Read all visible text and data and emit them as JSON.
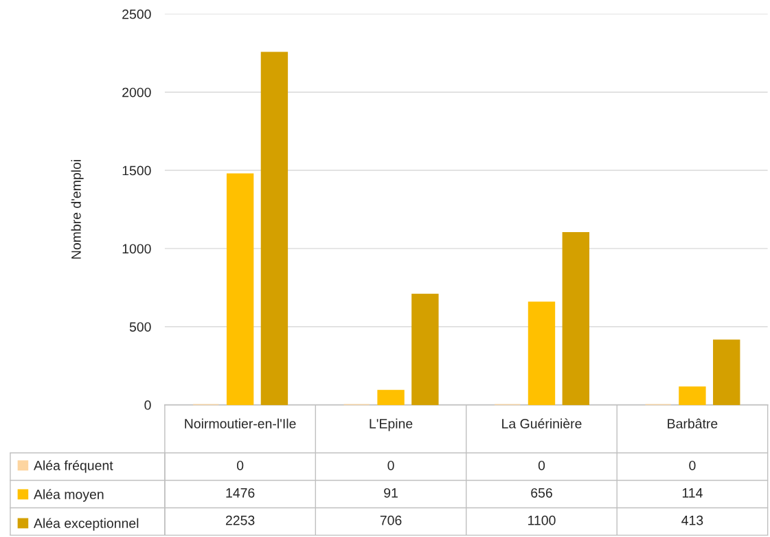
{
  "chart_data": {
    "type": "bar",
    "ylabel": "Nombre d'emploi",
    "categories": [
      "Noirmoutier-en-l'Ile",
      "L'Epine",
      "La Guérinière",
      "Barbâtre"
    ],
    "series": [
      {
        "name": "Aléa fréquent",
        "color": "#fdd5a0",
        "values": [
          0,
          0,
          0,
          0
        ]
      },
      {
        "name": "Aléa moyen",
        "color": "#ffc000",
        "values": [
          1476,
          91,
          656,
          114
        ]
      },
      {
        "name": "Aléa exceptionnel",
        "color": "#d4a000",
        "values": [
          2253,
          706,
          1100,
          413
        ]
      }
    ],
    "ylim": [
      0,
      2500
    ],
    "yticks": [
      0,
      500,
      1000,
      1500,
      2000,
      2500
    ],
    "grid": "y",
    "data_labels": true,
    "legend": "bottom left"
  }
}
